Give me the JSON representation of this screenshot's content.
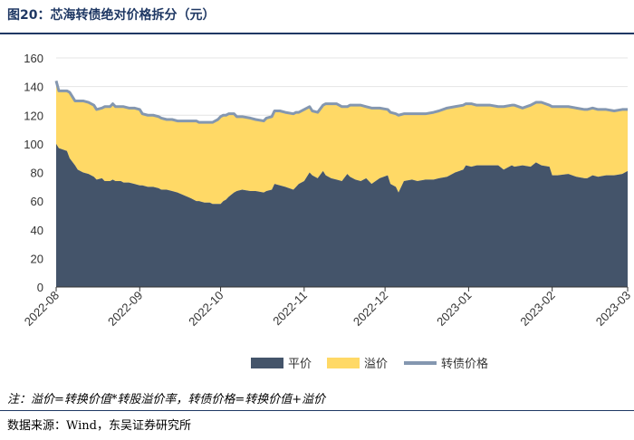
{
  "title": "图20：芯海转债绝对价格拆分（元）",
  "note": "注：溢价=转换价值*转股溢价率，转债价格=转换价值+溢价",
  "source": "数据来源：Wind，东吴证券研究所",
  "chart_data": {
    "type": "area",
    "y_ticks": [
      "0",
      "20",
      "40",
      "60",
      "80",
      "100",
      "120",
      "140",
      "160"
    ],
    "ylim": [
      0,
      160
    ],
    "x_ticks": [
      "2022-08",
      "2022-09",
      "2022-10",
      "2022-11",
      "2022-12",
      "2023-01",
      "2023-02",
      "2023-03"
    ],
    "x_tick_positions": [
      0,
      31,
      61,
      92,
      122,
      153,
      184,
      212
    ],
    "x_range": [
      0,
      212
    ],
    "legend_position": "bottom",
    "colors": {
      "parity": "#44546a",
      "premium": "#ffd966",
      "price": "#8497b0"
    },
    "series": [
      {
        "name": "平价",
        "key": "parity"
      },
      {
        "name": "溢价",
        "key": "premium"
      },
      {
        "name": "转债价格",
        "key": "price"
      }
    ],
    "x": [
      0,
      1,
      4,
      5,
      7,
      8,
      10,
      12,
      14,
      15,
      17,
      18,
      20,
      21,
      22,
      24,
      25,
      27,
      29,
      31,
      32,
      34,
      36,
      38,
      39,
      41,
      43,
      45,
      50,
      52,
      53,
      55,
      57,
      58,
      59,
      60,
      61,
      62,
      63,
      64,
      66,
      67,
      69,
      72,
      74,
      77,
      78,
      80,
      81,
      83,
      85,
      88,
      89,
      90,
      92,
      94,
      95,
      97,
      99,
      100,
      102,
      104,
      106,
      108,
      109,
      111,
      113,
      115,
      117,
      120,
      123,
      124,
      126,
      127,
      129,
      132,
      134,
      137,
      140,
      142,
      145,
      148,
      151,
      152,
      154,
      156,
      159,
      161,
      164,
      166,
      169,
      170,
      173,
      176,
      178,
      180,
      183,
      184,
      186,
      190,
      193,
      196,
      197,
      199,
      201,
      204,
      207,
      210,
      212
    ],
    "parity": [
      100,
      97,
      95,
      90,
      85,
      82,
      80,
      79,
      77,
      75,
      76,
      74,
      74,
      75,
      74,
      74,
      73,
      73,
      72,
      71,
      71,
      70,
      70,
      69,
      68,
      68,
      67,
      66,
      62,
      60,
      60,
      59,
      59,
      58,
      58,
      58,
      58,
      60,
      61,
      63,
      66,
      67,
      68,
      67,
      67,
      66,
      67,
      68,
      72,
      71,
      70,
      68,
      70,
      72,
      74,
      80,
      78,
      76,
      81,
      78,
      76,
      75,
      74,
      79,
      77,
      75,
      74,
      76,
      72,
      76,
      78,
      72,
      70,
      66,
      74,
      75,
      74,
      75,
      75,
      76,
      77,
      80,
      82,
      85,
      84,
      85,
      85,
      85,
      85,
      82,
      85,
      84,
      85,
      84,
      87,
      85,
      84,
      78,
      78,
      79,
      77,
      76,
      76,
      78,
      77,
      78,
      78,
      79,
      81
    ],
    "price": [
      144,
      137,
      137,
      136,
      130,
      130,
      130,
      129,
      127,
      124,
      125,
      126,
      126,
      128,
      126,
      126,
      126,
      125,
      125,
      124,
      121,
      120,
      120,
      119,
      118,
      117,
      117,
      116,
      116,
      116,
      115,
      115,
      115,
      115,
      116,
      117,
      119,
      120,
      120,
      121,
      121,
      119,
      119,
      118,
      117,
      116,
      118,
      119,
      123,
      123,
      122,
      121,
      122,
      122,
      124,
      126,
      123,
      122,
      127,
      128,
      128,
      128,
      126,
      126,
      127,
      127,
      127,
      126,
      125,
      125,
      124,
      122,
      121,
      120,
      121,
      121,
      121,
      121,
      122,
      123,
      125,
      126,
      127,
      128,
      128,
      127,
      127,
      127,
      126,
      126,
      127,
      127,
      125,
      127,
      129,
      129,
      127,
      126,
      126,
      126,
      125,
      124,
      124,
      125,
      124,
      124,
      123,
      124,
      124
    ]
  }
}
